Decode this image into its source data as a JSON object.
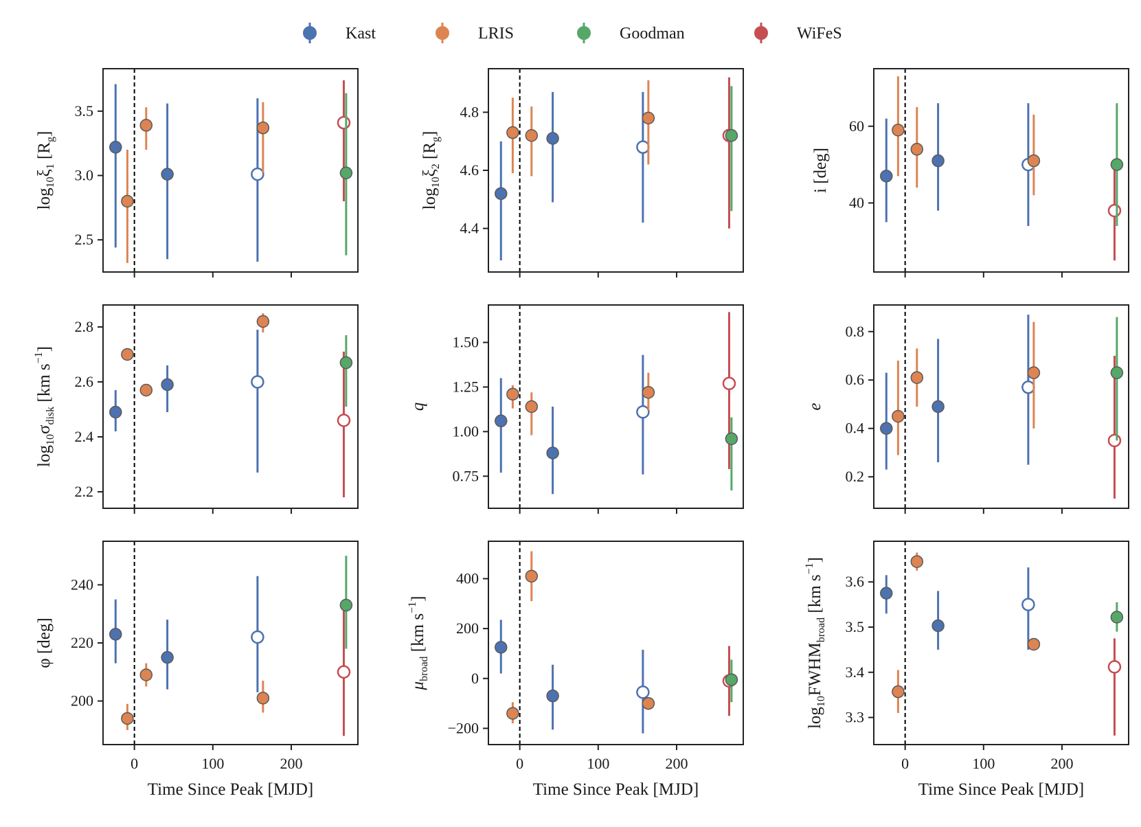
{
  "figure": {
    "legend": [
      {
        "name": "Kast",
        "color": "#4c72b0"
      },
      {
        "name": "LRIS",
        "color": "#dd8452"
      },
      {
        "name": "Goodman",
        "color": "#55a868"
      },
      {
        "name": "WiFeS",
        "color": "#c44e52"
      }
    ],
    "peak_line": 0
  },
  "chart_data": [
    {
      "type": "scatter",
      "id": "p0",
      "xlabel": "",
      "ylabel": "log₁₀ξ₁ [R_g]",
      "xlim": [
        -40,
        285
      ],
      "ylim": [
        2.25,
        3.83
      ],
      "xticks": [
        0,
        100,
        200
      ],
      "xticklabels": [],
      "yticks": [
        2.5,
        3.0,
        3.5
      ],
      "yticklabels": [
        "2.5",
        "3.0",
        "3.5"
      ],
      "points": [
        {
          "inst": "Kast",
          "x": -24,
          "y": 3.22,
          "lo": 2.44,
          "hi": 3.71,
          "hollow": false
        },
        {
          "inst": "LRIS",
          "x": -9,
          "y": 2.8,
          "lo": 2.32,
          "hi": 3.2,
          "hollow": false
        },
        {
          "inst": "LRIS",
          "x": 15,
          "y": 3.39,
          "lo": 3.2,
          "hi": 3.53,
          "hollow": false
        },
        {
          "inst": "Kast",
          "x": 42,
          "y": 3.01,
          "lo": 2.35,
          "hi": 3.56,
          "hollow": false
        },
        {
          "inst": "Kast",
          "x": 157,
          "y": 3.01,
          "lo": 2.33,
          "hi": 3.6,
          "hollow": true
        },
        {
          "inst": "LRIS",
          "x": 164,
          "y": 3.37,
          "lo": 3.02,
          "hi": 3.57,
          "hollow": false
        },
        {
          "inst": "WiFeS",
          "x": 267,
          "y": 3.41,
          "lo": 2.8,
          "hi": 3.74,
          "hollow": true
        },
        {
          "inst": "Goodman",
          "x": 270,
          "y": 3.02,
          "lo": 2.38,
          "hi": 3.64,
          "hollow": false
        }
      ]
    },
    {
      "type": "scatter",
      "id": "p1",
      "xlabel": "",
      "ylabel": "log₁₀ξ₂ [R_g]",
      "xlim": [
        -40,
        285
      ],
      "ylim": [
        4.25,
        4.95
      ],
      "xticks": [
        0,
        100,
        200
      ],
      "xticklabels": [],
      "yticks": [
        4.4,
        4.6,
        4.8
      ],
      "yticklabels": [
        "4.4",
        "4.6",
        "4.8"
      ],
      "points": [
        {
          "inst": "Kast",
          "x": -24,
          "y": 4.52,
          "lo": 4.29,
          "hi": 4.7,
          "hollow": false
        },
        {
          "inst": "LRIS",
          "x": -9,
          "y": 4.73,
          "lo": 4.59,
          "hi": 4.85,
          "hollow": false
        },
        {
          "inst": "LRIS",
          "x": 15,
          "y": 4.72,
          "lo": 4.58,
          "hi": 4.82,
          "hollow": false
        },
        {
          "inst": "Kast",
          "x": 42,
          "y": 4.71,
          "lo": 4.49,
          "hi": 4.87,
          "hollow": false
        },
        {
          "inst": "Kast",
          "x": 157,
          "y": 4.68,
          "lo": 4.42,
          "hi": 4.87,
          "hollow": true
        },
        {
          "inst": "LRIS",
          "x": 164,
          "y": 4.78,
          "lo": 4.62,
          "hi": 4.91,
          "hollow": false
        },
        {
          "inst": "WiFeS",
          "x": 267,
          "y": 4.72,
          "lo": 4.4,
          "hi": 4.92,
          "hollow": true
        },
        {
          "inst": "Goodman",
          "x": 270,
          "y": 4.72,
          "lo": 4.46,
          "hi": 4.89,
          "hollow": false
        }
      ]
    },
    {
      "type": "scatter",
      "id": "p2",
      "xlabel": "",
      "ylabel": "i [deg]",
      "xlim": [
        -40,
        285
      ],
      "ylim": [
        22,
        75
      ],
      "xticks": [
        0,
        100,
        200
      ],
      "xticklabels": [],
      "yticks": [
        40,
        60
      ],
      "yticklabels": [
        "40",
        "60"
      ],
      "points": [
        {
          "inst": "Kast",
          "x": -24,
          "y": 47,
          "lo": 35,
          "hi": 62,
          "hollow": false
        },
        {
          "inst": "LRIS",
          "x": -9,
          "y": 59,
          "lo": 47,
          "hi": 73,
          "hollow": false
        },
        {
          "inst": "LRIS",
          "x": 15,
          "y": 54,
          "lo": 44,
          "hi": 65,
          "hollow": false
        },
        {
          "inst": "Kast",
          "x": 42,
          "y": 51,
          "lo": 38,
          "hi": 66,
          "hollow": false
        },
        {
          "inst": "Kast",
          "x": 157,
          "y": 50,
          "lo": 34,
          "hi": 66,
          "hollow": true
        },
        {
          "inst": "LRIS",
          "x": 164,
          "y": 51,
          "lo": 42,
          "hi": 63,
          "hollow": false
        },
        {
          "inst": "WiFeS",
          "x": 267,
          "y": 38,
          "lo": 25,
          "hi": 50,
          "hollow": true
        },
        {
          "inst": "Goodman",
          "x": 270,
          "y": 50,
          "lo": 34,
          "hi": 66,
          "hollow": false
        }
      ]
    },
    {
      "type": "scatter",
      "id": "p3",
      "xlabel": "",
      "ylabel": "log₁₀σ_disk [km s⁻¹]",
      "xlim": [
        -40,
        285
      ],
      "ylim": [
        2.14,
        2.88
      ],
      "xticks": [
        0,
        100,
        200
      ],
      "xticklabels": [],
      "yticks": [
        2.2,
        2.4,
        2.6,
        2.8
      ],
      "yticklabels": [
        "2.2",
        "2.4",
        "2.6",
        "2.8"
      ],
      "points": [
        {
          "inst": "Kast",
          "x": -24,
          "y": 2.49,
          "lo": 2.42,
          "hi": 2.57,
          "hollow": false
        },
        {
          "inst": "LRIS",
          "x": -9,
          "y": 2.7,
          "lo": 2.68,
          "hi": 2.71,
          "hollow": false
        },
        {
          "inst": "LRIS",
          "x": 15,
          "y": 2.57,
          "lo": 2.56,
          "hi": 2.59,
          "hollow": false
        },
        {
          "inst": "Kast",
          "x": 42,
          "y": 2.59,
          "lo": 2.49,
          "hi": 2.66,
          "hollow": false
        },
        {
          "inst": "Kast",
          "x": 157,
          "y": 2.6,
          "lo": 2.27,
          "hi": 2.79,
          "hollow": true
        },
        {
          "inst": "LRIS",
          "x": 164,
          "y": 2.82,
          "lo": 2.78,
          "hi": 2.85,
          "hollow": false
        },
        {
          "inst": "WiFeS",
          "x": 267,
          "y": 2.46,
          "lo": 2.18,
          "hi": 2.71,
          "hollow": true
        },
        {
          "inst": "Goodman",
          "x": 270,
          "y": 2.67,
          "lo": 2.51,
          "hi": 2.77,
          "hollow": false
        }
      ]
    },
    {
      "type": "scatter",
      "id": "p4",
      "xlabel": "",
      "ylabel": "q",
      "xlim": [
        -40,
        285
      ],
      "ylim": [
        0.57,
        1.71
      ],
      "xticks": [
        0,
        100,
        200
      ],
      "xticklabels": [],
      "yticks": [
        0.75,
        1.0,
        1.25,
        1.5
      ],
      "yticklabels": [
        "0.75",
        "1.00",
        "1.25",
        "1.50"
      ],
      "points": [
        {
          "inst": "Kast",
          "x": -24,
          "y": 1.06,
          "lo": 0.77,
          "hi": 1.3,
          "hollow": false
        },
        {
          "inst": "LRIS",
          "x": -9,
          "y": 1.21,
          "lo": 1.13,
          "hi": 1.26,
          "hollow": false
        },
        {
          "inst": "LRIS",
          "x": 15,
          "y": 1.14,
          "lo": 0.98,
          "hi": 1.22,
          "hollow": false
        },
        {
          "inst": "Kast",
          "x": 42,
          "y": 0.88,
          "lo": 0.65,
          "hi": 1.14,
          "hollow": false
        },
        {
          "inst": "Kast",
          "x": 157,
          "y": 1.11,
          "lo": 0.76,
          "hi": 1.43,
          "hollow": true
        },
        {
          "inst": "LRIS",
          "x": 164,
          "y": 1.22,
          "lo": 1.12,
          "hi": 1.33,
          "hollow": false
        },
        {
          "inst": "WiFeS",
          "x": 267,
          "y": 1.27,
          "lo": 0.79,
          "hi": 1.67,
          "hollow": true
        },
        {
          "inst": "Goodman",
          "x": 270,
          "y": 0.96,
          "lo": 0.67,
          "hi": 1.08,
          "hollow": false
        }
      ]
    },
    {
      "type": "scatter",
      "id": "p5",
      "xlabel": "",
      "ylabel": "e",
      "xlim": [
        -40,
        285
      ],
      "ylim": [
        0.07,
        0.91
      ],
      "xticks": [
        0,
        100,
        200
      ],
      "xticklabels": [],
      "yticks": [
        0.2,
        0.4,
        0.6,
        0.8
      ],
      "yticklabels": [
        "0.2",
        "0.4",
        "0.6",
        "0.8"
      ],
      "points": [
        {
          "inst": "Kast",
          "x": -24,
          "y": 0.4,
          "lo": 0.23,
          "hi": 0.63,
          "hollow": false
        },
        {
          "inst": "LRIS",
          "x": -9,
          "y": 0.45,
          "lo": 0.29,
          "hi": 0.68,
          "hollow": false
        },
        {
          "inst": "LRIS",
          "x": 15,
          "y": 0.61,
          "lo": 0.49,
          "hi": 0.73,
          "hollow": false
        },
        {
          "inst": "Kast",
          "x": 42,
          "y": 0.49,
          "lo": 0.26,
          "hi": 0.77,
          "hollow": false
        },
        {
          "inst": "Kast",
          "x": 157,
          "y": 0.57,
          "lo": 0.25,
          "hi": 0.87,
          "hollow": true
        },
        {
          "inst": "LRIS",
          "x": 164,
          "y": 0.63,
          "lo": 0.4,
          "hi": 0.84,
          "hollow": false
        },
        {
          "inst": "WiFeS",
          "x": 267,
          "y": 0.35,
          "lo": 0.11,
          "hi": 0.7,
          "hollow": true
        },
        {
          "inst": "Goodman",
          "x": 270,
          "y": 0.63,
          "lo": 0.35,
          "hi": 0.86,
          "hollow": false
        }
      ]
    },
    {
      "type": "scatter",
      "id": "p6",
      "xlabel": "Time Since Peak [MJD]",
      "ylabel": "φ [deg]",
      "xlim": [
        -40,
        285
      ],
      "ylim": [
        185,
        255
      ],
      "xticks": [
        0,
        100,
        200
      ],
      "xticklabels": [
        "0",
        "100",
        "200"
      ],
      "yticks": [
        200,
        220,
        240
      ],
      "yticklabels": [
        "200",
        "220",
        "240"
      ],
      "points": [
        {
          "inst": "Kast",
          "x": -24,
          "y": 223,
          "lo": 213,
          "hi": 235,
          "hollow": false
        },
        {
          "inst": "LRIS",
          "x": -9,
          "y": 194,
          "lo": 190,
          "hi": 199,
          "hollow": false
        },
        {
          "inst": "LRIS",
          "x": 15,
          "y": 209,
          "lo": 205,
          "hi": 213,
          "hollow": false
        },
        {
          "inst": "Kast",
          "x": 42,
          "y": 215,
          "lo": 204,
          "hi": 228,
          "hollow": false
        },
        {
          "inst": "Kast",
          "x": 157,
          "y": 222,
          "lo": 203,
          "hi": 243,
          "hollow": true
        },
        {
          "inst": "LRIS",
          "x": 164,
          "y": 201,
          "lo": 196,
          "hi": 207,
          "hollow": false
        },
        {
          "inst": "WiFeS",
          "x": 267,
          "y": 210,
          "lo": 188,
          "hi": 232,
          "hollow": true
        },
        {
          "inst": "Goodman",
          "x": 270,
          "y": 233,
          "lo": 218,
          "hi": 250,
          "hollow": false
        }
      ]
    },
    {
      "type": "scatter",
      "id": "p7",
      "xlabel": "Time Since Peak [MJD]",
      "ylabel": "μ_broad [km s⁻¹]",
      "xlim": [
        -40,
        285
      ],
      "ylim": [
        -265,
        550
      ],
      "xticks": [
        0,
        100,
        200
      ],
      "xticklabels": [
        "0",
        "100",
        "200"
      ],
      "yticks": [
        -200,
        0,
        200,
        400
      ],
      "yticklabels": [
        "−200",
        "0",
        "200",
        "400"
      ],
      "points": [
        {
          "inst": "Kast",
          "x": -24,
          "y": 125,
          "lo": 20,
          "hi": 235,
          "hollow": false
        },
        {
          "inst": "LRIS",
          "x": -9,
          "y": -140,
          "lo": -180,
          "hi": -95,
          "hollow": false
        },
        {
          "inst": "LRIS",
          "x": 15,
          "y": 410,
          "lo": 310,
          "hi": 510,
          "hollow": false
        },
        {
          "inst": "Kast",
          "x": 42,
          "y": -70,
          "lo": -205,
          "hi": 55,
          "hollow": false
        },
        {
          "inst": "Kast",
          "x": 157,
          "y": -55,
          "lo": -220,
          "hi": 115,
          "hollow": true
        },
        {
          "inst": "LRIS",
          "x": 164,
          "y": -100,
          "lo": -125,
          "hi": -80,
          "hollow": false
        },
        {
          "inst": "WiFeS",
          "x": 267,
          "y": -10,
          "lo": -150,
          "hi": 130,
          "hollow": true
        },
        {
          "inst": "Goodman",
          "x": 270,
          "y": -5,
          "lo": -95,
          "hi": 75,
          "hollow": false
        }
      ]
    },
    {
      "type": "scatter",
      "id": "p8",
      "xlabel": "Time Since Peak [MJD]",
      "ylabel": "log₁₀FWHM_broad [km s⁻¹]",
      "xlim": [
        -40,
        285
      ],
      "ylim": [
        3.24,
        3.69
      ],
      "xticks": [
        0,
        100,
        200
      ],
      "xticklabels": [
        "0",
        "100",
        "200"
      ],
      "yticks": [
        3.3,
        3.4,
        3.5,
        3.6
      ],
      "yticklabels": [
        "3.3",
        "3.4",
        "3.5",
        "3.6"
      ],
      "points": [
        {
          "inst": "Kast",
          "x": -24,
          "y": 3.575,
          "lo": 3.53,
          "hi": 3.615,
          "hollow": false
        },
        {
          "inst": "LRIS",
          "x": -9,
          "y": 3.357,
          "lo": 3.31,
          "hi": 3.405,
          "hollow": false
        },
        {
          "inst": "LRIS",
          "x": 15,
          "y": 3.645,
          "lo": 3.625,
          "hi": 3.665,
          "hollow": false
        },
        {
          "inst": "Kast",
          "x": 42,
          "y": 3.503,
          "lo": 3.45,
          "hi": 3.58,
          "hollow": false
        },
        {
          "inst": "Kast",
          "x": 157,
          "y": 3.55,
          "lo": 3.45,
          "hi": 3.632,
          "hollow": true
        },
        {
          "inst": "LRIS",
          "x": 164,
          "y": 3.462,
          "lo": 3.455,
          "hi": 3.47,
          "hollow": false
        },
        {
          "inst": "WiFeS",
          "x": 267,
          "y": 3.412,
          "lo": 3.26,
          "hi": 3.475,
          "hollow": true
        },
        {
          "inst": "Goodman",
          "x": 270,
          "y": 3.522,
          "lo": 3.49,
          "hi": 3.555,
          "hollow": false
        }
      ]
    }
  ]
}
